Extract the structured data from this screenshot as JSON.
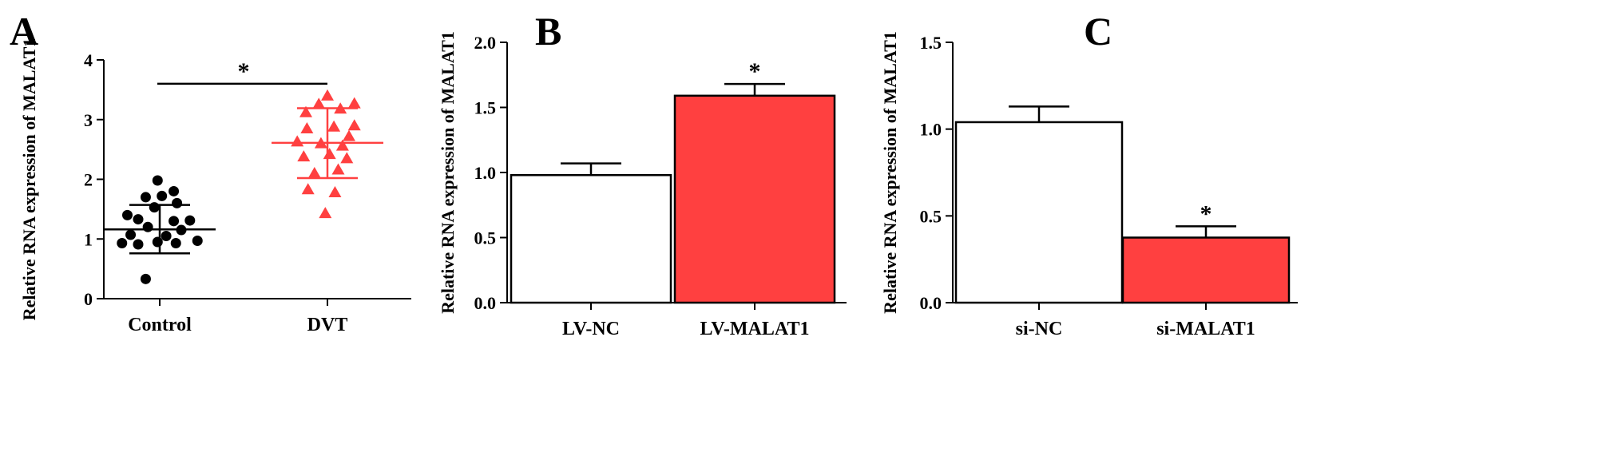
{
  "colors": {
    "axis": "#000000",
    "control": "#000000",
    "treatment": "#ff4040",
    "white_bar": "#ffffff"
  },
  "chart_data": [
    {
      "panel": "A",
      "type": "scatter",
      "ylabel": "Relative RNA expression of  MALAT1",
      "ylim": [
        0,
        4
      ],
      "yticks": [
        "0",
        "1",
        "2",
        "3",
        "4"
      ],
      "categories": [
        "Control",
        "DVT"
      ],
      "series": [
        {
          "category": "Control",
          "marker": "circle",
          "color": "#000000",
          "mean": 1.16,
          "sd_low": 0.76,
          "sd_high": 1.57,
          "points": [
            {
              "offset": -0.13,
              "y": 0.33
            },
            {
              "offset": -0.35,
              "y": 0.93
            },
            {
              "offset": -0.2,
              "y": 0.91
            },
            {
              "offset": -0.02,
              "y": 0.95
            },
            {
              "offset": 0.15,
              "y": 0.93
            },
            {
              "offset": 0.35,
              "y": 0.97
            },
            {
              "offset": -0.27,
              "y": 1.07
            },
            {
              "offset": 0.06,
              "y": 1.05
            },
            {
              "offset": -0.11,
              "y": 1.2
            },
            {
              "offset": 0.2,
              "y": 1.15
            },
            {
              "offset": -0.2,
              "y": 1.33
            },
            {
              "offset": 0.13,
              "y": 1.3
            },
            {
              "offset": 0.28,
              "y": 1.31
            },
            {
              "offset": -0.3,
              "y": 1.4
            },
            {
              "offset": -0.05,
              "y": 1.53
            },
            {
              "offset": 0.16,
              "y": 1.6
            },
            {
              "offset": -0.13,
              "y": 1.7
            },
            {
              "offset": 0.02,
              "y": 1.72
            },
            {
              "offset": 0.13,
              "y": 1.8
            },
            {
              "offset": -0.02,
              "y": 1.98
            }
          ]
        },
        {
          "category": "DVT",
          "marker": "triangle",
          "color": "#ff4040",
          "mean": 2.61,
          "sd_low": 2.02,
          "sd_high": 3.19,
          "points": [
            {
              "offset": -0.02,
              "y": 1.43
            },
            {
              "offset": -0.18,
              "y": 1.83
            },
            {
              "offset": 0.07,
              "y": 1.78
            },
            {
              "offset": -0.12,
              "y": 2.1
            },
            {
              "offset": 0.1,
              "y": 2.16
            },
            {
              "offset": -0.22,
              "y": 2.38
            },
            {
              "offset": 0.02,
              "y": 2.42
            },
            {
              "offset": 0.18,
              "y": 2.35
            },
            {
              "offset": -0.28,
              "y": 2.63
            },
            {
              "offset": -0.06,
              "y": 2.6
            },
            {
              "offset": 0.14,
              "y": 2.56
            },
            {
              "offset": 0.2,
              "y": 2.72
            },
            {
              "offset": -0.19,
              "y": 2.85
            },
            {
              "offset": 0.06,
              "y": 2.88
            },
            {
              "offset": 0.25,
              "y": 2.9
            },
            {
              "offset": -0.2,
              "y": 3.12
            },
            {
              "offset": 0.12,
              "y": 3.18
            },
            {
              "offset": -0.08,
              "y": 3.26
            },
            {
              "offset": 0.25,
              "y": 3.27
            },
            {
              "offset": 0.0,
              "y": 3.4
            }
          ]
        }
      ],
      "significance": {
        "label": "*",
        "from": 0,
        "to": 1,
        "y": 3.6
      }
    },
    {
      "panel": "B",
      "type": "bar",
      "ylabel": "Relative RNA expression of  MALAT1",
      "ylim": [
        0,
        2.0
      ],
      "yticks": [
        "0.0",
        "0.5",
        "1.0",
        "1.5",
        "2.0"
      ],
      "categories": [
        "LV-NC",
        "LV-MALAT1"
      ],
      "values": [
        0.98,
        1.59
      ],
      "errors": [
        0.09,
        0.09
      ],
      "bar_colors": [
        "#ffffff",
        "#ff4040"
      ],
      "annotations": [
        "",
        "*"
      ]
    },
    {
      "panel": "C",
      "type": "bar",
      "ylabel": "Relative RNA expression of  MALAT1",
      "ylim": [
        0,
        1.5
      ],
      "yticks": [
        "0.0",
        "0.5",
        "1.0",
        "1.5"
      ],
      "categories": [
        "si-NC",
        "si-MALAT1"
      ],
      "values": [
        1.04,
        0.375
      ],
      "errors": [
        0.09,
        0.065
      ],
      "bar_colors": [
        "#ffffff",
        "#ff4040"
      ],
      "annotations": [
        "",
        "*"
      ]
    }
  ]
}
